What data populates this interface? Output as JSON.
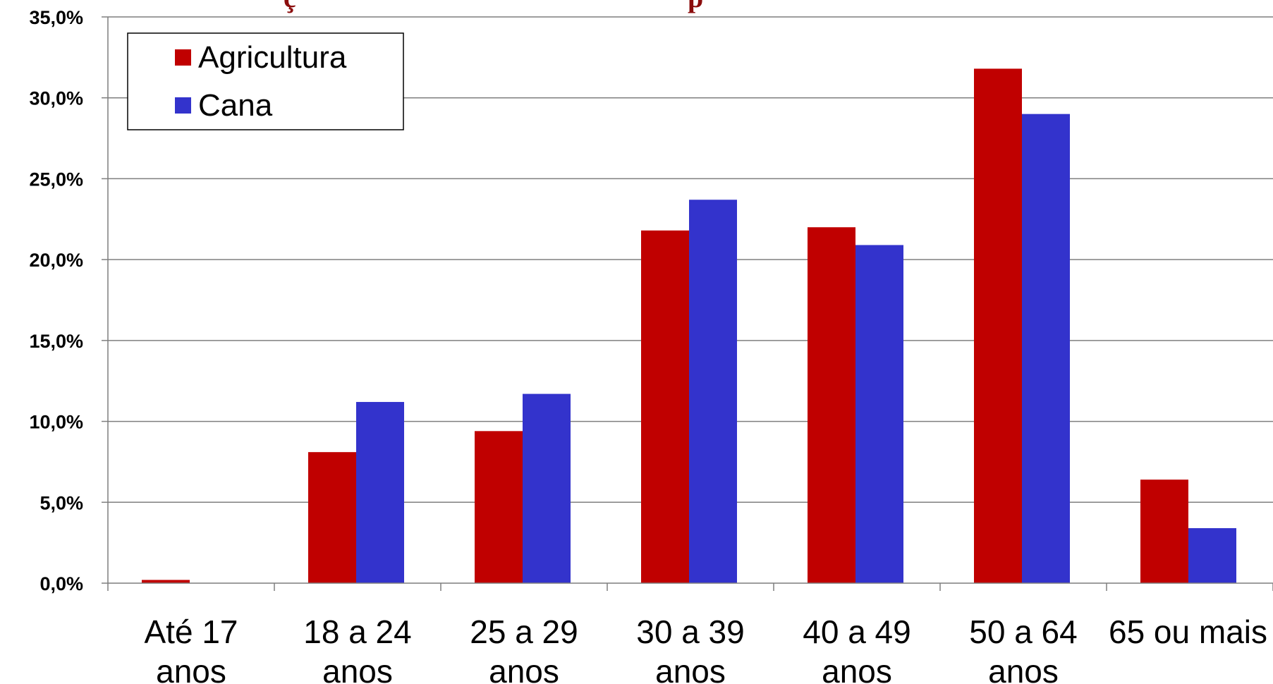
{
  "chart_data": {
    "type": "bar",
    "categories": [
      [
        "Até 17",
        "anos"
      ],
      [
        "18 a 24",
        "anos"
      ],
      [
        "25 a 29",
        "anos"
      ],
      [
        "30 a 39",
        "anos"
      ],
      [
        "40 a 49",
        "anos"
      ],
      [
        "50 a 64",
        "anos"
      ],
      [
        "65 ou mais"
      ]
    ],
    "series": [
      {
        "name": "Agricultura",
        "color": "#c00000",
        "values": [
          0.2,
          8.1,
          9.4,
          21.8,
          22.0,
          31.8,
          6.4
        ]
      },
      {
        "name": "Cana",
        "color": "#3333cc",
        "values": [
          0.0,
          11.2,
          11.7,
          23.7,
          20.9,
          29.0,
          3.4
        ]
      }
    ],
    "ylim": [
      0,
      35
    ],
    "y_ticks": [
      "0,0%",
      "5,0%",
      "10,0%",
      "15,0%",
      "20,0%",
      "25,0%",
      "30,0%",
      "35,0%"
    ],
    "grid": true,
    "legend_position": "top-left",
    "title_fragments": [
      "ç",
      "p"
    ]
  }
}
